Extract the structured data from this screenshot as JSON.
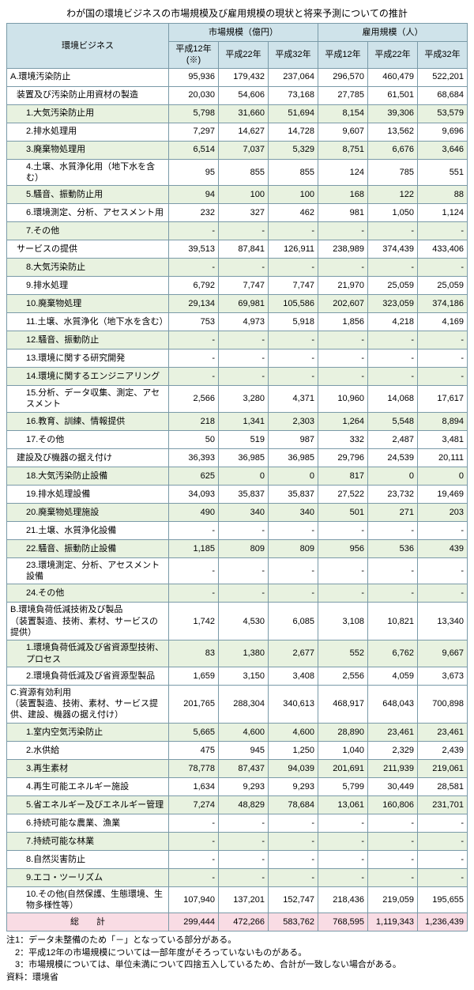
{
  "title": "わが国の環境ビジネスの市場規模及び雇用規模の現状と将来予測についての推計",
  "header": {
    "rowLabel": "環境ビジネス",
    "group1": "市場規模（億円）",
    "group2": "雇用規模（人）",
    "cols": [
      "平成12年(※)",
      "平成22年",
      "平成32年",
      "平成12年",
      "平成22年",
      "平成32年"
    ]
  },
  "rows": [
    {
      "t": "sec",
      "label": "A.環境汚染防止",
      "v": [
        "95,936",
        "179,432",
        "237,064",
        "296,570",
        "460,479",
        "522,201"
      ]
    },
    {
      "t": "sub",
      "label": "装置及び汚染防止用資材の製造",
      "v": [
        "20,030",
        "54,606",
        "73,168",
        "27,785",
        "61,501",
        "68,684"
      ]
    },
    {
      "t": "alt",
      "indent": 2,
      "label": "1.大気汚染防止用",
      "v": [
        "5,798",
        "31,660",
        "51,694",
        "8,154",
        "39,306",
        "53,579"
      ]
    },
    {
      "indent": 2,
      "label": "2.排水処理用",
      "v": [
        "7,297",
        "14,627",
        "14,728",
        "9,607",
        "13,562",
        "9,696"
      ]
    },
    {
      "t": "alt",
      "indent": 2,
      "label": "3.廃棄物処理用",
      "v": [
        "6,514",
        "7,037",
        "5,329",
        "8,751",
        "6,676",
        "3,646"
      ]
    },
    {
      "indent": 2,
      "label": "4.土壌、水質浄化用（地下水を含む）",
      "v": [
        "95",
        "855",
        "855",
        "124",
        "785",
        "551"
      ]
    },
    {
      "t": "alt",
      "indent": 2,
      "label": "5.騒音、振動防止用",
      "v": [
        "94",
        "100",
        "100",
        "168",
        "122",
        "88"
      ]
    },
    {
      "indent": 2,
      "label": "6.環境測定、分析、アセスメント用",
      "v": [
        "232",
        "327",
        "462",
        "981",
        "1,050",
        "1,124"
      ]
    },
    {
      "t": "alt",
      "indent": 2,
      "label": "7.その他",
      "v": [
        "-",
        "-",
        "-",
        "-",
        "-",
        "-"
      ]
    },
    {
      "t": "sub",
      "label": "サービスの提供",
      "v": [
        "39,513",
        "87,841",
        "126,911",
        "238,989",
        "374,439",
        "433,406"
      ]
    },
    {
      "t": "alt",
      "indent": 2,
      "label": "8.大気汚染防止",
      "v": [
        "-",
        "-",
        "-",
        "-",
        "-",
        "-"
      ]
    },
    {
      "indent": 2,
      "label": "9.排水処理",
      "v": [
        "6,792",
        "7,747",
        "7,747",
        "21,970",
        "25,059",
        "25,059"
      ]
    },
    {
      "t": "alt",
      "indent": 2,
      "label": "10.廃棄物処理",
      "v": [
        "29,134",
        "69,981",
        "105,586",
        "202,607",
        "323,059",
        "374,186"
      ]
    },
    {
      "indent": 2,
      "label": "11.土壌、水質浄化（地下水を含む）",
      "v": [
        "753",
        "4,973",
        "5,918",
        "1,856",
        "4,218",
        "4,169"
      ]
    },
    {
      "t": "alt",
      "indent": 2,
      "label": "12.騒音、振動防止",
      "v": [
        "-",
        "-",
        "-",
        "-",
        "-",
        "-"
      ]
    },
    {
      "indent": 2,
      "label": "13.環境に関する研究開発",
      "v": [
        "-",
        "-",
        "-",
        "-",
        "-",
        "-"
      ]
    },
    {
      "t": "alt",
      "indent": 2,
      "label": "14.環境に関するエンジニアリング",
      "v": [
        "-",
        "-",
        "-",
        "-",
        "-",
        "-"
      ]
    },
    {
      "indent": 2,
      "label": "15.分析、データ収集、測定、アセスメント",
      "v": [
        "2,566",
        "3,280",
        "4,371",
        "10,960",
        "14,068",
        "17,617"
      ]
    },
    {
      "t": "alt",
      "indent": 2,
      "label": "16.教育、訓練、情報提供",
      "v": [
        "218",
        "1,341",
        "2,303",
        "1,264",
        "5,548",
        "8,894"
      ]
    },
    {
      "indent": 2,
      "label": "17.その他",
      "v": [
        "50",
        "519",
        "987",
        "332",
        "2,487",
        "3,481"
      ]
    },
    {
      "t": "sub",
      "label": "建設及び機器の据え付け",
      "v": [
        "36,393",
        "36,985",
        "36,985",
        "29,796",
        "24,539",
        "20,111"
      ]
    },
    {
      "t": "alt",
      "indent": 2,
      "label": "18.大気汚染防止設備",
      "v": [
        "625",
        "0",
        "0",
        "817",
        "0",
        "0"
      ]
    },
    {
      "indent": 2,
      "label": "19.排水処理設備",
      "v": [
        "34,093",
        "35,837",
        "35,837",
        "27,522",
        "23,732",
        "19,469"
      ]
    },
    {
      "t": "alt",
      "indent": 2,
      "label": "20.廃棄物処理施設",
      "v": [
        "490",
        "340",
        "340",
        "501",
        "271",
        "203"
      ]
    },
    {
      "indent": 2,
      "label": "21.土壌、水質浄化設備",
      "v": [
        "-",
        "-",
        "-",
        "-",
        "-",
        "-"
      ]
    },
    {
      "t": "alt",
      "indent": 2,
      "label": "22.騒音、振動防止設備",
      "v": [
        "1,185",
        "809",
        "809",
        "956",
        "536",
        "439"
      ]
    },
    {
      "indent": 2,
      "label": "23.環境測定、分析、アセスメント設備",
      "v": [
        "-",
        "-",
        "-",
        "-",
        "-",
        "-"
      ]
    },
    {
      "t": "alt",
      "indent": 2,
      "label": "24.その他",
      "v": [
        "-",
        "-",
        "-",
        "-",
        "-",
        "-"
      ]
    },
    {
      "t": "sec",
      "label": "B.環境負荷低減技術及び製品\n（装置製造、技術、素材、サービスの提供）",
      "v": [
        "1,742",
        "4,530",
        "6,085",
        "3,108",
        "10,821",
        "13,340"
      ]
    },
    {
      "t": "alt",
      "indent": 2,
      "label": "1.環境負荷低減及び省資源型技術、プロセス",
      "v": [
        "83",
        "1,380",
        "2,677",
        "552",
        "6,762",
        "9,667"
      ]
    },
    {
      "indent": 2,
      "label": "2.環境負荷低減及び省資源型製品",
      "v": [
        "1,659",
        "3,150",
        "3,408",
        "2,556",
        "4,059",
        "3,673"
      ]
    },
    {
      "t": "sec",
      "label": "C.資源有効利用\n（装置製造、技術、素材、サービス提供、建設、機器の据え付け）",
      "v": [
        "201,765",
        "288,304",
        "340,613",
        "468,917",
        "648,043",
        "700,898"
      ]
    },
    {
      "t": "alt",
      "indent": 2,
      "label": "1.室内空気汚染防止",
      "v": [
        "5,665",
        "4,600",
        "4,600",
        "28,890",
        "23,461",
        "23,461"
      ]
    },
    {
      "indent": 2,
      "label": "2.水供給",
      "v": [
        "475",
        "945",
        "1,250",
        "1,040",
        "2,329",
        "2,439"
      ]
    },
    {
      "t": "alt",
      "indent": 2,
      "label": "3.再生素材",
      "v": [
        "78,778",
        "87,437",
        "94,039",
        "201,691",
        "211,939",
        "219,061"
      ]
    },
    {
      "indent": 2,
      "label": "4.再生可能エネルギー施設",
      "v": [
        "1,634",
        "9,293",
        "9,293",
        "5,799",
        "30,449",
        "28,581"
      ]
    },
    {
      "t": "alt",
      "indent": 2,
      "label": "5.省エネルギー及びエネルギー管理",
      "v": [
        "7,274",
        "48,829",
        "78,684",
        "13,061",
        "160,806",
        "231,701"
      ]
    },
    {
      "indent": 2,
      "label": "6.持続可能な農業、漁業",
      "v": [
        "-",
        "-",
        "-",
        "-",
        "-",
        "-"
      ]
    },
    {
      "t": "alt",
      "indent": 2,
      "label": "7.持続可能な林業",
      "v": [
        "-",
        "-",
        "-",
        "-",
        "-",
        "-"
      ]
    },
    {
      "indent": 2,
      "label": "8.自然災害防止",
      "v": [
        "-",
        "-",
        "-",
        "-",
        "-",
        "-"
      ]
    },
    {
      "t": "alt",
      "indent": 2,
      "label": "9.エコ・ツーリズム",
      "v": [
        "-",
        "-",
        "-",
        "-",
        "-",
        "-"
      ]
    },
    {
      "indent": 2,
      "label": "10.その他(自然保護、生態環境、生物多様性等）",
      "v": [
        "107,940",
        "137,201",
        "152,747",
        "218,436",
        "219,059",
        "195,655"
      ]
    }
  ],
  "total": {
    "label": "総　　計",
    "v": [
      "299,444",
      "472,266",
      "583,762",
      "768,595",
      "1,119,343",
      "1,236,439"
    ]
  },
  "notes": [
    "注1：データ未整備のため「－」となっている部分がある。",
    "　2：平成12年の市場規模については一部年度がそろっていないものがある。",
    "　3：市場規模については、単位未満について四捨五入しているため、合計が一致しない場合がある。",
    "資料：環境省"
  ]
}
